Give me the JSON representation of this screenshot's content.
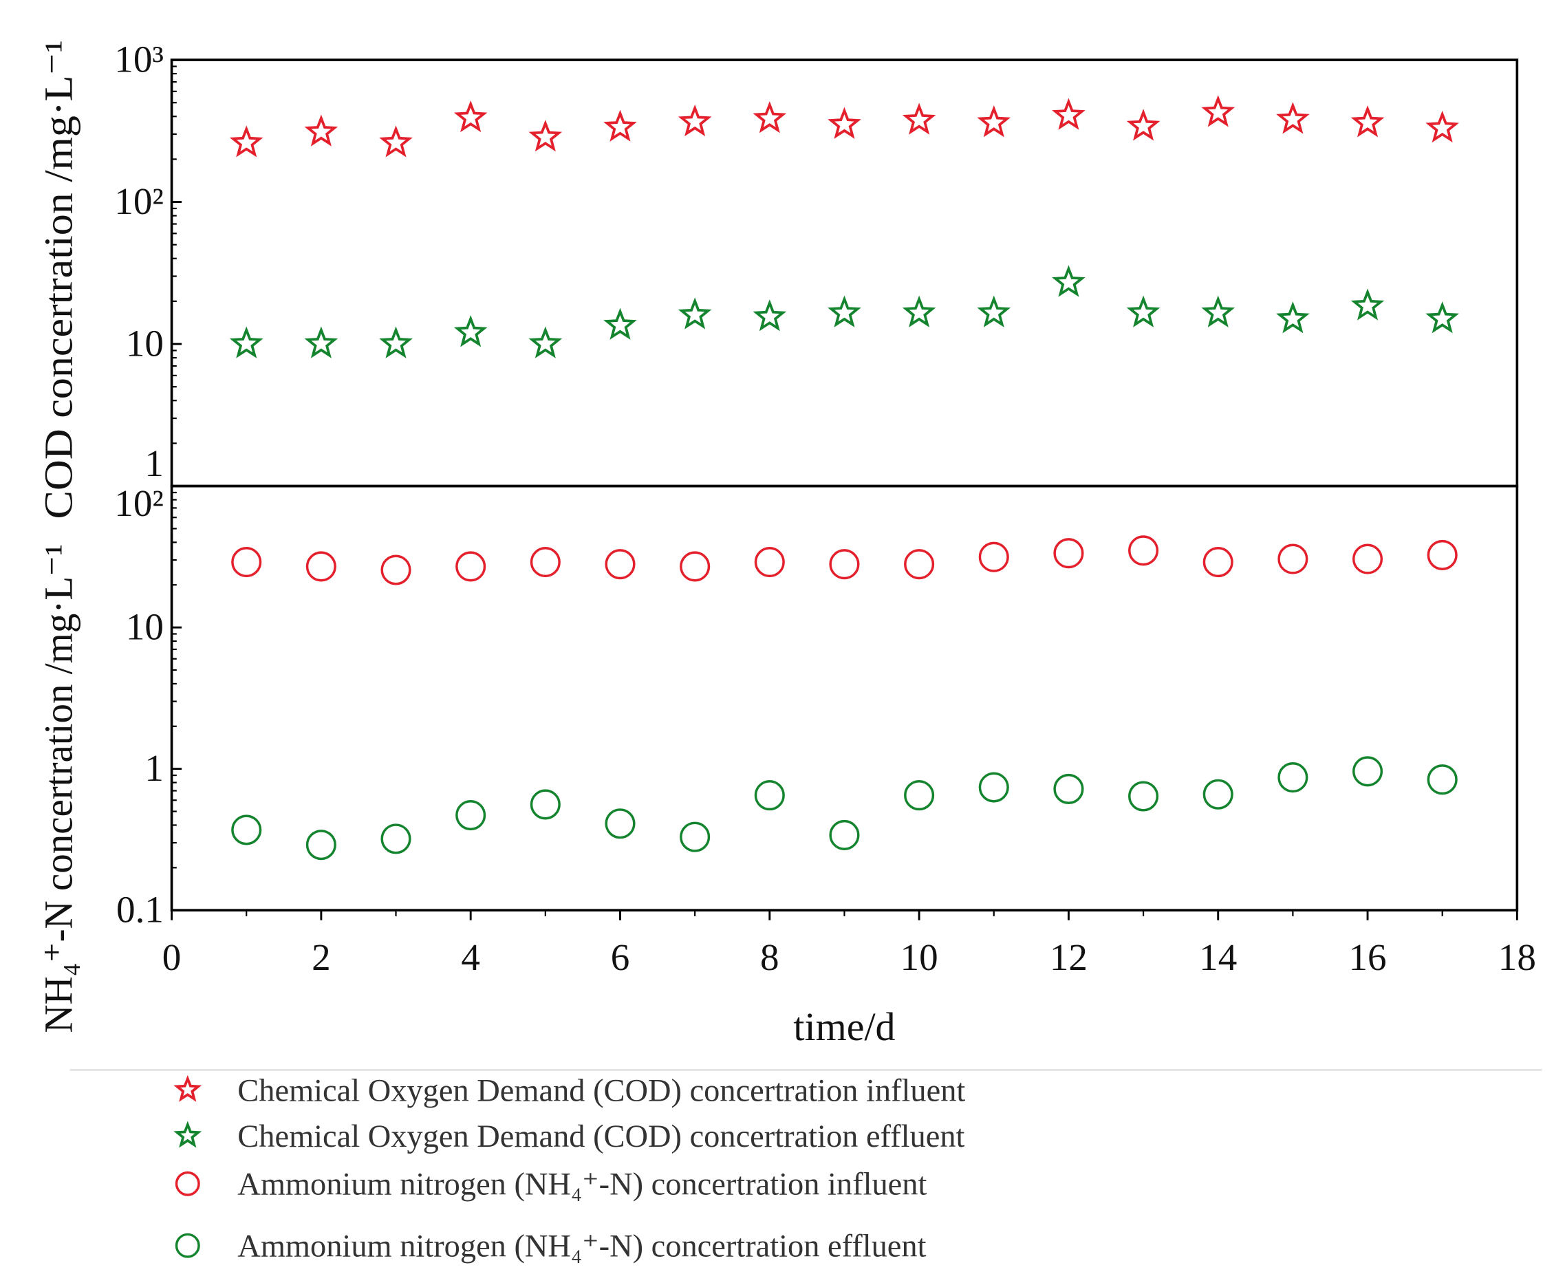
{
  "chart_data": [
    {
      "type": "scatter",
      "log_scale": true,
      "y_label": "COD concertration /mg·L⁻¹",
      "xlim": [
        0,
        18
      ],
      "ylim": [
        1,
        1000
      ],
      "yticks": [
        {
          "value": 1000,
          "label": "10³"
        },
        {
          "value": 100,
          "label": "10²"
        },
        10,
        1
      ],
      "x": [
        1,
        2,
        3,
        4,
        5,
        6,
        7,
        8,
        9,
        10,
        11,
        12,
        13,
        14,
        15,
        16,
        17
      ],
      "series": [
        {
          "name": "Chemical Oxygen Demand (COD) concertration influent",
          "marker": "star",
          "color": "#e3202c",
          "values": [
            260,
            310,
            260,
            390,
            285,
            335,
            365,
            385,
            350,
            375,
            360,
            405,
            340,
            425,
            380,
            360,
            330
          ]
        },
        {
          "name": "Chemical Oxygen Demand (COD) concertration effluent",
          "marker": "star",
          "color": "#14852e",
          "values": [
            10,
            10,
            10,
            12,
            10,
            13.5,
            16,
            15.5,
            16.5,
            16.5,
            16.5,
            27,
            16.5,
            16.5,
            15,
            18.5,
            15
          ]
        }
      ]
    },
    {
      "type": "scatter",
      "log_scale": true,
      "y_label": "NH₄⁺-N concertration /mg·L⁻¹",
      "x_label": "time/d",
      "xlim": [
        0,
        18
      ],
      "xticks": [
        0,
        2,
        4,
        6,
        8,
        10,
        12,
        14,
        16,
        18
      ],
      "ylim": [
        0.1,
        100
      ],
      "yticks": [
        {
          "value": 100,
          "label": "10²"
        },
        10,
        1,
        0.1
      ],
      "x": [
        1,
        2,
        3,
        4,
        5,
        6,
        7,
        8,
        9,
        10,
        11,
        12,
        13,
        14,
        15,
        16,
        17
      ],
      "series": [
        {
          "name": "Ammonium nitrogen (NH₄⁺-N) concertration influent",
          "marker": "circle",
          "color": "#e3202c",
          "values": [
            29,
            27,
            25.5,
            27,
            29,
            28,
            27,
            29,
            28,
            28,
            31.5,
            33.5,
            35,
            29,
            30.5,
            30.5,
            32.5
          ]
        },
        {
          "name": "Ammonium nitrogen (NH₄⁺-N) concertration effluent",
          "marker": "circle",
          "color": "#14852e",
          "values": [
            0.37,
            0.29,
            0.32,
            0.47,
            0.56,
            0.41,
            0.33,
            0.65,
            0.34,
            0.65,
            0.74,
            0.72,
            0.64,
            0.66,
            0.87,
            0.96,
            0.84
          ]
        }
      ]
    }
  ]
}
